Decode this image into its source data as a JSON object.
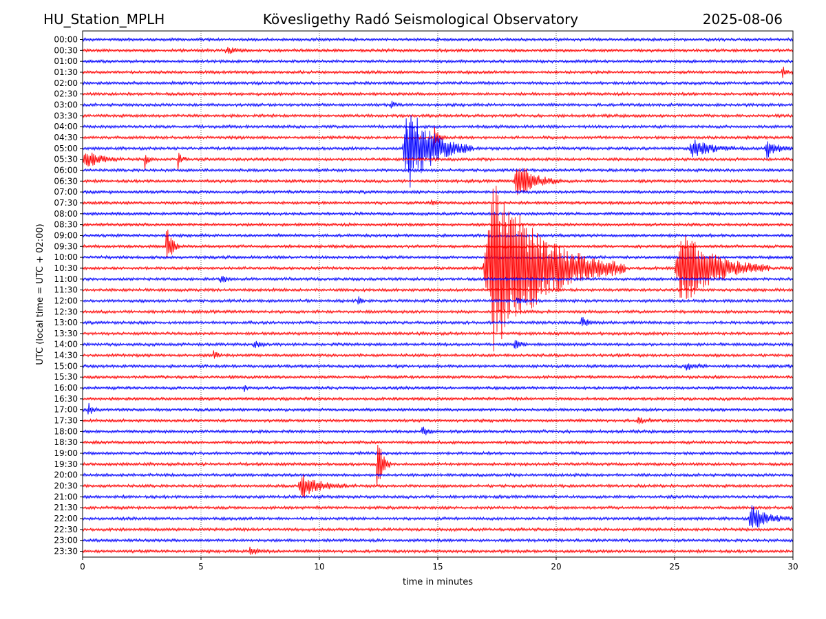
{
  "header": {
    "station": "HU_Station_MPLH",
    "observatory": "Kövesligethy Radó Seismological Observatory",
    "date": "2025-08-06"
  },
  "chart_data": {
    "type": "line",
    "title": "Kövesligethy Radó Seismological Observatory",
    "xlabel": "time in minutes",
    "ylabel": "UTC (local time = UTC + 02:00)",
    "xlim": [
      0,
      30
    ],
    "x_ticks": [
      "0",
      "5",
      "10",
      "15",
      "20",
      "25",
      "30"
    ],
    "grid": "vertical dotted lines at 5-minute ticks",
    "colors": {
      "even_rows": "#0000ff",
      "odd_rows": "#ff0000",
      "axis": "#000000"
    },
    "rows": [
      {
        "label": "00:00",
        "events": []
      },
      {
        "label": "00:30",
        "events": [
          {
            "t": 6.0,
            "amp": 0.3,
            "dur": 1.0
          }
        ]
      },
      {
        "label": "01:00",
        "events": []
      },
      {
        "label": "01:30",
        "events": [
          {
            "t": 29.5,
            "amp": 0.6,
            "dur": 0.5
          }
        ]
      },
      {
        "label": "02:00",
        "events": []
      },
      {
        "label": "02:30",
        "events": []
      },
      {
        "label": "03:00",
        "events": [
          {
            "t": 13.0,
            "amp": 0.3,
            "dur": 0.5
          }
        ]
      },
      {
        "label": "03:30",
        "events": []
      },
      {
        "label": "04:00",
        "events": []
      },
      {
        "label": "04:30",
        "events": [
          {
            "t": 14.8,
            "amp": 1.5,
            "dur": 0.5
          }
        ]
      },
      {
        "label": "05:00",
        "events": [
          {
            "t": 13.5,
            "amp": 4.5,
            "dur": 3.0
          },
          {
            "t": 25.6,
            "amp": 0.9,
            "dur": 2.3
          },
          {
            "t": 28.8,
            "amp": 0.9,
            "dur": 1.2
          }
        ]
      },
      {
        "label": "05:30",
        "events": [
          {
            "t": 0.0,
            "amp": 1.0,
            "dur": 1.6
          },
          {
            "t": 2.6,
            "amp": 0.9,
            "dur": 0.4
          },
          {
            "t": 4.0,
            "amp": 0.9,
            "dur": 0.4
          }
        ]
      },
      {
        "label": "06:00",
        "events": []
      },
      {
        "label": "06:30",
        "events": [
          {
            "t": 18.2,
            "amp": 2.0,
            "dur": 2.0
          }
        ]
      },
      {
        "label": "07:00",
        "events": []
      },
      {
        "label": "07:30",
        "events": [
          {
            "t": 14.7,
            "amp": 0.4,
            "dur": 0.4
          }
        ]
      },
      {
        "label": "08:00",
        "events": []
      },
      {
        "label": "08:30",
        "events": []
      },
      {
        "label": "09:00",
        "events": []
      },
      {
        "label": "09:30",
        "events": [
          {
            "t": 3.5,
            "amp": 2.2,
            "dur": 0.6
          }
        ]
      },
      {
        "label": "10:00",
        "events": []
      },
      {
        "label": "10:30",
        "events": [
          {
            "t": 16.9,
            "amp": 9.0,
            "dur": 6.0
          },
          {
            "t": 25.0,
            "amp": 3.8,
            "dur": 4.0
          }
        ]
      },
      {
        "label": "11:00",
        "events": [
          {
            "t": 5.8,
            "amp": 0.4,
            "dur": 0.6
          }
        ]
      },
      {
        "label": "11:30",
        "events": []
      },
      {
        "label": "12:00",
        "events": [
          {
            "t": 11.6,
            "amp": 0.6,
            "dur": 0.3
          },
          {
            "t": 18.3,
            "amp": 0.4,
            "dur": 0.6
          }
        ]
      },
      {
        "label": "12:30",
        "events": []
      },
      {
        "label": "13:00",
        "events": [
          {
            "t": 21.0,
            "amp": 0.5,
            "dur": 1.0
          }
        ]
      },
      {
        "label": "13:30",
        "events": []
      },
      {
        "label": "14:00",
        "events": [
          {
            "t": 7.2,
            "amp": 0.4,
            "dur": 0.6
          },
          {
            "t": 18.2,
            "amp": 0.5,
            "dur": 0.6
          }
        ]
      },
      {
        "label": "14:30",
        "events": [
          {
            "t": 5.5,
            "amp": 0.6,
            "dur": 0.4
          }
        ]
      },
      {
        "label": "15:00",
        "events": [
          {
            "t": 25.4,
            "amp": 0.4,
            "dur": 1.0
          }
        ]
      },
      {
        "label": "15:30",
        "events": []
      },
      {
        "label": "16:00",
        "events": [
          {
            "t": 6.8,
            "amp": 0.5,
            "dur": 0.2
          }
        ]
      },
      {
        "label": "16:30",
        "events": []
      },
      {
        "label": "17:00",
        "events": [
          {
            "t": 0.2,
            "amp": 0.8,
            "dur": 0.4
          }
        ]
      },
      {
        "label": "17:30",
        "events": [
          {
            "t": 23.4,
            "amp": 0.3,
            "dur": 0.8
          }
        ]
      },
      {
        "label": "18:00",
        "events": [
          {
            "t": 14.3,
            "amp": 0.5,
            "dur": 0.6
          }
        ]
      },
      {
        "label": "18:30",
        "events": []
      },
      {
        "label": "19:00",
        "events": []
      },
      {
        "label": "19:30",
        "events": [
          {
            "t": 12.4,
            "amp": 3.0,
            "dur": 0.6
          }
        ]
      },
      {
        "label": "20:00",
        "events": []
      },
      {
        "label": "20:30",
        "events": [
          {
            "t": 9.1,
            "amp": 1.3,
            "dur": 2.0
          }
        ]
      },
      {
        "label": "21:00",
        "events": []
      },
      {
        "label": "21:30",
        "events": []
      },
      {
        "label": "22:00",
        "events": [
          {
            "t": 28.1,
            "amp": 1.4,
            "dur": 1.8
          }
        ]
      },
      {
        "label": "22:30",
        "events": []
      },
      {
        "label": "23:00",
        "events": []
      },
      {
        "label": "23:30",
        "events": [
          {
            "t": 7.0,
            "amp": 0.4,
            "dur": 1.0
          }
        ]
      }
    ]
  }
}
